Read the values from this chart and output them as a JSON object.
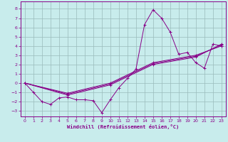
{
  "xlabel": "Windchill (Refroidissement éolien,°C)",
  "bg_color": "#c8ecec",
  "line_color": "#880088",
  "grid_color": "#99bbbb",
  "xlim": [
    -0.5,
    23.5
  ],
  "ylim": [
    -3.6,
    8.8
  ],
  "xticks": [
    0,
    1,
    2,
    3,
    4,
    5,
    6,
    7,
    8,
    9,
    10,
    11,
    12,
    13,
    14,
    15,
    16,
    17,
    18,
    19,
    20,
    21,
    22,
    23
  ],
  "yticks": [
    -3,
    -2,
    -1,
    0,
    1,
    2,
    3,
    4,
    5,
    6,
    7,
    8
  ],
  "series": [
    {
      "x": [
        0,
        1,
        2,
        3,
        4,
        5,
        6,
        7,
        8,
        9,
        10,
        11,
        12,
        13,
        14,
        15,
        16,
        17,
        18,
        19,
        20,
        21,
        22,
        23
      ],
      "y": [
        0,
        -1,
        -2,
        -2.3,
        -1.6,
        -1.5,
        -1.8,
        -1.8,
        -1.9,
        -3.2,
        -1.8,
        -0.5,
        0.5,
        1.5,
        6.3,
        7.9,
        7.0,
        5.5,
        3.1,
        3.3,
        2.2,
        1.6,
        4.2,
        4.0
      ],
      "marker": true
    },
    {
      "x": [
        0,
        5,
        10,
        15,
        20,
        23
      ],
      "y": [
        0,
        -1.3,
        -0.2,
        2.0,
        2.8,
        4.2
      ],
      "marker": false
    },
    {
      "x": [
        0,
        5,
        10,
        15,
        20,
        23
      ],
      "y": [
        0,
        -1.1,
        0.0,
        2.2,
        3.0,
        4.0
      ],
      "marker": false
    },
    {
      "x": [
        0,
        5,
        10,
        15,
        20,
        23
      ],
      "y": [
        0,
        -1.2,
        -0.1,
        2.1,
        2.9,
        4.1
      ],
      "marker": false
    }
  ]
}
